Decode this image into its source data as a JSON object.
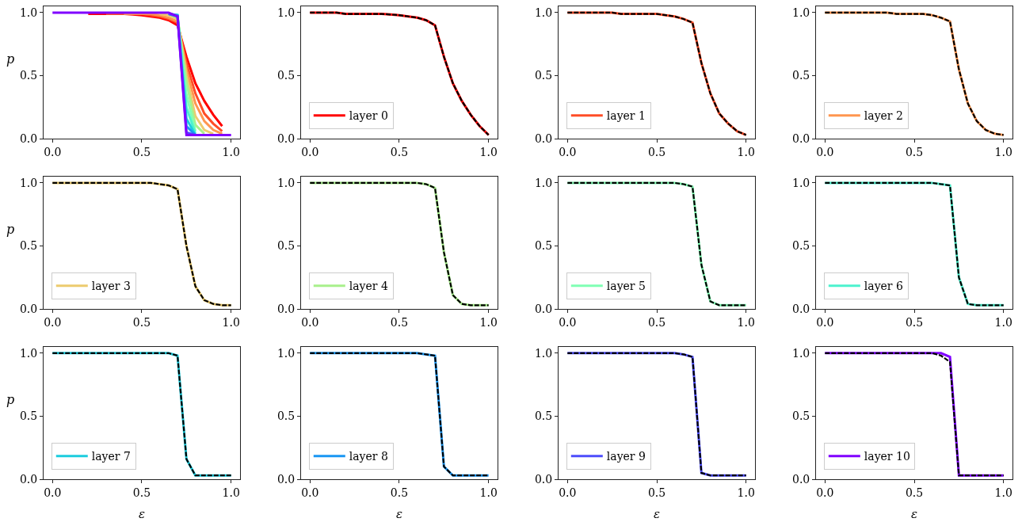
{
  "chart_data": [
    {
      "type": "line",
      "ylabel": "p",
      "x": [
        0,
        0.05,
        0.1,
        0.15,
        0.2,
        0.25,
        0.3,
        0.35,
        0.4,
        0.45,
        0.5,
        0.55,
        0.6,
        0.65,
        0.7,
        0.75,
        0.8,
        0.85,
        0.9,
        0.95,
        1.0
      ],
      "xlim": [
        -0.05,
        1.05
      ],
      "ylim": [
        0,
        1.05
      ],
      "xticks": [
        {
          "value": 0,
          "label": "0.0"
        },
        {
          "value": 0.5,
          "label": "0.5"
        },
        {
          "value": 1,
          "label": "1.0"
        }
      ],
      "yticks": [
        {
          "value": 0,
          "label": "0.0"
        },
        {
          "value": 0.5,
          "label": "0.5"
        },
        {
          "value": 1,
          "label": "1.0"
        }
      ],
      "series": [
        {
          "color": "#ff0000",
          "values": [
            null,
            null,
            null,
            null,
            0.99,
            0.99,
            0.99,
            0.99,
            0.99,
            0.985,
            0.98,
            0.97,
            0.96,
            0.94,
            0.9,
            0.65,
            0.44,
            0.3,
            0.19,
            0.1,
            null
          ]
        },
        {
          "color": "#ff4d27",
          "values": [
            null,
            null,
            null,
            null,
            null,
            null,
            0.99,
            0.99,
            0.99,
            0.99,
            0.99,
            0.98,
            0.97,
            0.95,
            0.92,
            0.6,
            0.36,
            0.2,
            0.12,
            0.06,
            null
          ]
        },
        {
          "color": "#ff964f",
          "values": [
            null,
            null,
            null,
            null,
            null,
            null,
            null,
            null,
            0.99,
            0.99,
            0.99,
            0.99,
            0.98,
            0.96,
            0.93,
            0.55,
            0.28,
            0.14,
            0.07,
            0.04,
            null
          ]
        },
        {
          "color": "#eccb6e",
          "values": [
            null,
            null,
            null,
            null,
            null,
            null,
            null,
            null,
            null,
            null,
            null,
            null,
            0.99,
            0.98,
            0.95,
            0.5,
            0.18,
            0.07,
            0.04,
            null,
            null
          ]
        },
        {
          "color": "#a8f08c",
          "values": [
            null,
            null,
            null,
            null,
            null,
            null,
            null,
            null,
            null,
            null,
            null,
            null,
            null,
            0.99,
            0.96,
            0.45,
            0.11,
            0.04,
            null,
            null,
            null
          ]
        },
        {
          "color": "#80ffb4",
          "values": [
            null,
            null,
            null,
            null,
            null,
            null,
            null,
            null,
            null,
            null,
            null,
            null,
            null,
            0.99,
            0.97,
            0.35,
            0.06,
            null,
            null,
            null,
            null
          ]
        },
        {
          "color": "#4cf2ce",
          "values": [
            null,
            null,
            null,
            null,
            null,
            null,
            null,
            null,
            null,
            null,
            null,
            null,
            null,
            0.99,
            0.98,
            0.25,
            0.04,
            null,
            null,
            null,
            null
          ]
        },
        {
          "color": "#1ccdde",
          "values": [
            null,
            null,
            null,
            null,
            null,
            null,
            null,
            null,
            null,
            null,
            null,
            null,
            null,
            null,
            0.98,
            0.16,
            0.03,
            null,
            null,
            null,
            null
          ]
        },
        {
          "color": "#1996f3",
          "values": [
            null,
            null,
            null,
            null,
            null,
            null,
            null,
            null,
            null,
            null,
            null,
            null,
            null,
            0.99,
            0.98,
            0.1,
            0.03,
            null,
            null,
            null,
            null
          ]
        },
        {
          "color": "#4d4dfc",
          "values": [
            null,
            null,
            null,
            null,
            null,
            null,
            null,
            null,
            null,
            null,
            null,
            null,
            null,
            0.99,
            0.97,
            0.05,
            0.03,
            null,
            null,
            null,
            null
          ]
        },
        {
          "color": "#8000ff",
          "values": [
            1,
            1,
            1,
            1,
            1,
            1,
            1,
            1,
            1,
            1,
            1,
            1,
            1,
            1,
            0.97,
            0.03,
            0.03,
            0.03,
            0.03,
            0.03,
            0.03
          ]
        }
      ]
    },
    {
      "type": "line",
      "legend": "bottom left",
      "x": [
        0,
        0.05,
        0.1,
        0.15,
        0.2,
        0.25,
        0.3,
        0.35,
        0.4,
        0.45,
        0.5,
        0.55,
        0.6,
        0.65,
        0.7,
        0.75,
        0.8,
        0.85,
        0.9,
        0.95,
        1.0
      ],
      "xlim": [
        -0.05,
        1.05
      ],
      "ylim": [
        0,
        1.05
      ],
      "xticks": [
        {
          "value": 0,
          "label": "0.0"
        },
        {
          "value": 0.5,
          "label": "0.5"
        },
        {
          "value": 1,
          "label": "1.0"
        }
      ],
      "yticks": [
        {
          "value": 0,
          "label": "0.0"
        },
        {
          "value": 0.5,
          "label": "0.5"
        },
        {
          "value": 1,
          "label": "1.0"
        }
      ],
      "series": [
        {
          "name": "layer 0",
          "color": "#ff0000",
          "values": [
            1,
            1,
            1,
            1,
            0.99,
            0.99,
            0.99,
            0.99,
            0.99,
            0.985,
            0.98,
            0.97,
            0.96,
            0.94,
            0.9,
            0.65,
            0.44,
            0.3,
            0.19,
            0.1,
            0.03
          ]
        },
        {
          "color": "#000000",
          "line_style": "dashed",
          "values": [
            1,
            1,
            1,
            1,
            0.99,
            0.99,
            0.99,
            0.99,
            0.99,
            0.985,
            0.98,
            0.97,
            0.96,
            0.94,
            0.9,
            0.65,
            0.44,
            0.3,
            0.19,
            0.1,
            0.03
          ]
        }
      ]
    },
    {
      "type": "line",
      "legend": "bottom left",
      "x": [
        0,
        0.05,
        0.1,
        0.15,
        0.2,
        0.25,
        0.3,
        0.35,
        0.4,
        0.45,
        0.5,
        0.55,
        0.6,
        0.65,
        0.7,
        0.75,
        0.8,
        0.85,
        0.9,
        0.95,
        1.0
      ],
      "xlim": [
        -0.05,
        1.05
      ],
      "ylim": [
        0,
        1.05
      ],
      "xticks": [
        {
          "value": 0,
          "label": "0.0"
        },
        {
          "value": 0.5,
          "label": "0.5"
        },
        {
          "value": 1,
          "label": "1.0"
        }
      ],
      "yticks": [
        {
          "value": 0,
          "label": "0.0"
        },
        {
          "value": 0.5,
          "label": "0.5"
        },
        {
          "value": 1,
          "label": "1.0"
        }
      ],
      "series": [
        {
          "name": "layer 1",
          "color": "#ff4d27",
          "values": [
            1,
            1,
            1,
            1,
            1,
            1,
            0.99,
            0.99,
            0.99,
            0.99,
            0.99,
            0.98,
            0.97,
            0.95,
            0.92,
            0.6,
            0.36,
            0.2,
            0.12,
            0.06,
            0.03
          ]
        },
        {
          "color": "#000000",
          "line_style": "dashed",
          "values": [
            1,
            1,
            1,
            1,
            1,
            1,
            0.99,
            0.99,
            0.99,
            0.99,
            0.99,
            0.98,
            0.97,
            0.95,
            0.92,
            0.6,
            0.36,
            0.2,
            0.12,
            0.06,
            0.03
          ]
        }
      ]
    },
    {
      "type": "line",
      "legend": "bottom left",
      "x": [
        0,
        0.05,
        0.1,
        0.15,
        0.2,
        0.25,
        0.3,
        0.35,
        0.4,
        0.45,
        0.5,
        0.55,
        0.6,
        0.65,
        0.7,
        0.75,
        0.8,
        0.85,
        0.9,
        0.95,
        1.0
      ],
      "xlim": [
        -0.05,
        1.05
      ],
      "ylim": [
        0,
        1.05
      ],
      "xticks": [
        {
          "value": 0,
          "label": "0.0"
        },
        {
          "value": 0.5,
          "label": "0.5"
        },
        {
          "value": 1,
          "label": "1.0"
        }
      ],
      "yticks": [
        {
          "value": 0,
          "label": "0.0"
        },
        {
          "value": 0.5,
          "label": "0.5"
        },
        {
          "value": 1,
          "label": "1.0"
        }
      ],
      "series": [
        {
          "name": "layer 2",
          "color": "#ff964f",
          "values": [
            1,
            1,
            1,
            1,
            1,
            1,
            1,
            1,
            0.99,
            0.99,
            0.99,
            0.99,
            0.98,
            0.96,
            0.93,
            0.55,
            0.28,
            0.14,
            0.07,
            0.04,
            0.03
          ]
        },
        {
          "color": "#000000",
          "line_style": "dashed",
          "values": [
            1,
            1,
            1,
            1,
            1,
            1,
            1,
            1,
            0.99,
            0.99,
            0.99,
            0.99,
            0.98,
            0.96,
            0.93,
            0.55,
            0.28,
            0.14,
            0.07,
            0.04,
            0.03
          ]
        }
      ]
    },
    {
      "type": "line",
      "ylabel": "p",
      "legend": "bottom left",
      "x": [
        0,
        0.05,
        0.1,
        0.15,
        0.2,
        0.25,
        0.3,
        0.35,
        0.4,
        0.45,
        0.5,
        0.55,
        0.6,
        0.65,
        0.7,
        0.75,
        0.8,
        0.85,
        0.9,
        0.95,
        1.0
      ],
      "xlim": [
        -0.05,
        1.05
      ],
      "ylim": [
        0,
        1.05
      ],
      "xticks": [
        {
          "value": 0,
          "label": "0.0"
        },
        {
          "value": 0.5,
          "label": "0.5"
        },
        {
          "value": 1,
          "label": "1.0"
        }
      ],
      "yticks": [
        {
          "value": 0,
          "label": "0.0"
        },
        {
          "value": 0.5,
          "label": "0.5"
        },
        {
          "value": 1,
          "label": "1.0"
        }
      ],
      "series": [
        {
          "name": "layer 3",
          "color": "#eccb6e",
          "values": [
            1,
            1,
            1,
            1,
            1,
            1,
            1,
            1,
            1,
            1,
            1,
            1,
            0.99,
            0.98,
            0.95,
            0.5,
            0.18,
            0.07,
            0.04,
            0.03,
            0.03
          ]
        },
        {
          "color": "#000000",
          "line_style": "dashed",
          "values": [
            1,
            1,
            1,
            1,
            1,
            1,
            1,
            1,
            1,
            1,
            1,
            1,
            0.99,
            0.98,
            0.95,
            0.5,
            0.18,
            0.07,
            0.04,
            0.03,
            0.03
          ]
        }
      ]
    },
    {
      "type": "line",
      "legend": "bottom left",
      "x": [
        0,
        0.05,
        0.1,
        0.15,
        0.2,
        0.25,
        0.3,
        0.35,
        0.4,
        0.45,
        0.5,
        0.55,
        0.6,
        0.65,
        0.7,
        0.75,
        0.8,
        0.85,
        0.9,
        0.95,
        1.0
      ],
      "xlim": [
        -0.05,
        1.05
      ],
      "ylim": [
        0,
        1.05
      ],
      "xticks": [
        {
          "value": 0,
          "label": "0.0"
        },
        {
          "value": 0.5,
          "label": "0.5"
        },
        {
          "value": 1,
          "label": "1.0"
        }
      ],
      "yticks": [
        {
          "value": 0,
          "label": "0.0"
        },
        {
          "value": 0.5,
          "label": "0.5"
        },
        {
          "value": 1,
          "label": "1.0"
        }
      ],
      "series": [
        {
          "name": "layer 4",
          "color": "#a8f08c",
          "values": [
            1,
            1,
            1,
            1,
            1,
            1,
            1,
            1,
            1,
            1,
            1,
            1,
            1,
            0.99,
            0.96,
            0.45,
            0.11,
            0.04,
            0.03,
            0.03,
            0.03
          ]
        },
        {
          "color": "#000000",
          "line_style": "dashed",
          "values": [
            1,
            1,
            1,
            1,
            1,
            1,
            1,
            1,
            1,
            1,
            1,
            1,
            1,
            0.99,
            0.96,
            0.45,
            0.11,
            0.04,
            0.03,
            0.03,
            0.03
          ]
        }
      ]
    },
    {
      "type": "line",
      "legend": "bottom left",
      "x": [
        0,
        0.05,
        0.1,
        0.15,
        0.2,
        0.25,
        0.3,
        0.35,
        0.4,
        0.45,
        0.5,
        0.55,
        0.6,
        0.65,
        0.7,
        0.75,
        0.8,
        0.85,
        0.9,
        0.95,
        1.0
      ],
      "xlim": [
        -0.05,
        1.05
      ],
      "ylim": [
        0,
        1.05
      ],
      "xticks": [
        {
          "value": 0,
          "label": "0.0"
        },
        {
          "value": 0.5,
          "label": "0.5"
        },
        {
          "value": 1,
          "label": "1.0"
        }
      ],
      "yticks": [
        {
          "value": 0,
          "label": "0.0"
        },
        {
          "value": 0.5,
          "label": "0.5"
        },
        {
          "value": 1,
          "label": "1.0"
        }
      ],
      "series": [
        {
          "name": "layer 5",
          "color": "#80ffb4",
          "values": [
            1,
            1,
            1,
            1,
            1,
            1,
            1,
            1,
            1,
            1,
            1,
            1,
            1,
            0.99,
            0.97,
            0.35,
            0.06,
            0.03,
            0.03,
            0.03,
            0.03
          ]
        },
        {
          "color": "#000000",
          "line_style": "dashed",
          "values": [
            1,
            1,
            1,
            1,
            1,
            1,
            1,
            1,
            1,
            1,
            1,
            1,
            1,
            0.99,
            0.97,
            0.35,
            0.06,
            0.03,
            0.03,
            0.03,
            0.03
          ]
        }
      ]
    },
    {
      "type": "line",
      "legend": "bottom left",
      "x": [
        0,
        0.05,
        0.1,
        0.15,
        0.2,
        0.25,
        0.3,
        0.35,
        0.4,
        0.45,
        0.5,
        0.55,
        0.6,
        0.65,
        0.7,
        0.75,
        0.8,
        0.85,
        0.9,
        0.95,
        1.0
      ],
      "xlim": [
        -0.05,
        1.05
      ],
      "ylim": [
        0,
        1.05
      ],
      "xticks": [
        {
          "value": 0,
          "label": "0.0"
        },
        {
          "value": 0.5,
          "label": "0.5"
        },
        {
          "value": 1,
          "label": "1.0"
        }
      ],
      "yticks": [
        {
          "value": 0,
          "label": "0.0"
        },
        {
          "value": 0.5,
          "label": "0.5"
        },
        {
          "value": 1,
          "label": "1.0"
        }
      ],
      "series": [
        {
          "name": "layer 6",
          "color": "#4cf2ce",
          "values": [
            1,
            1,
            1,
            1,
            1,
            1,
            1,
            1,
            1,
            1,
            1,
            1,
            1,
            0.99,
            0.98,
            0.25,
            0.04,
            0.03,
            0.03,
            0.03,
            0.03
          ]
        },
        {
          "color": "#000000",
          "line_style": "dashed",
          "values": [
            1,
            1,
            1,
            1,
            1,
            1,
            1,
            1,
            1,
            1,
            1,
            1,
            1,
            0.99,
            0.98,
            0.25,
            0.04,
            0.03,
            0.03,
            0.03,
            0.03
          ]
        }
      ]
    },
    {
      "type": "line",
      "ylabel": "p",
      "xlabel": "ε",
      "legend": "bottom left",
      "x": [
        0,
        0.05,
        0.1,
        0.15,
        0.2,
        0.25,
        0.3,
        0.35,
        0.4,
        0.45,
        0.5,
        0.55,
        0.6,
        0.65,
        0.7,
        0.75,
        0.8,
        0.85,
        0.9,
        0.95,
        1.0
      ],
      "xlim": [
        -0.05,
        1.05
      ],
      "ylim": [
        0,
        1.05
      ],
      "xticks": [
        {
          "value": 0,
          "label": "0.0"
        },
        {
          "value": 0.5,
          "label": "0.5"
        },
        {
          "value": 1,
          "label": "1.0"
        }
      ],
      "yticks": [
        {
          "value": 0,
          "label": "0.0"
        },
        {
          "value": 0.5,
          "label": "0.5"
        },
        {
          "value": 1,
          "label": "1.0"
        }
      ],
      "series": [
        {
          "name": "layer 7",
          "color": "#1ccdde",
          "values": [
            1,
            1,
            1,
            1,
            1,
            1,
            1,
            1,
            1,
            1,
            1,
            1,
            1,
            1,
            0.98,
            0.16,
            0.03,
            0.03,
            0.03,
            0.03,
            0.03
          ]
        },
        {
          "color": "#000000",
          "line_style": "dashed",
          "values": [
            1,
            1,
            1,
            1,
            1,
            1,
            1,
            1,
            1,
            1,
            1,
            1,
            1,
            1,
            0.98,
            0.16,
            0.03,
            0.03,
            0.03,
            0.03,
            0.03
          ]
        }
      ]
    },
    {
      "type": "line",
      "xlabel": "ε",
      "legend": "bottom left",
      "x": [
        0,
        0.05,
        0.1,
        0.15,
        0.2,
        0.25,
        0.3,
        0.35,
        0.4,
        0.45,
        0.5,
        0.55,
        0.6,
        0.65,
        0.7,
        0.75,
        0.8,
        0.85,
        0.9,
        0.95,
        1.0
      ],
      "xlim": [
        -0.05,
        1.05
      ],
      "ylim": [
        0,
        1.05
      ],
      "xticks": [
        {
          "value": 0,
          "label": "0.0"
        },
        {
          "value": 0.5,
          "label": "0.5"
        },
        {
          "value": 1,
          "label": "1.0"
        }
      ],
      "yticks": [
        {
          "value": 0,
          "label": "0.0"
        },
        {
          "value": 0.5,
          "label": "0.5"
        },
        {
          "value": 1,
          "label": "1.0"
        }
      ],
      "series": [
        {
          "name": "layer 8",
          "color": "#1996f3",
          "values": [
            1,
            1,
            1,
            1,
            1,
            1,
            1,
            1,
            1,
            1,
            1,
            1,
            1,
            0.99,
            0.98,
            0.1,
            0.03,
            0.03,
            0.03,
            0.03,
            0.03
          ]
        },
        {
          "color": "#000000",
          "line_style": "dashed",
          "values": [
            1,
            1,
            1,
            1,
            1,
            1,
            1,
            1,
            1,
            1,
            1,
            1,
            1,
            0.99,
            0.98,
            0.1,
            0.03,
            0.03,
            0.03,
            0.03,
            0.03
          ]
        }
      ]
    },
    {
      "type": "line",
      "xlabel": "ε",
      "legend": "bottom left",
      "x": [
        0,
        0.05,
        0.1,
        0.15,
        0.2,
        0.25,
        0.3,
        0.35,
        0.4,
        0.45,
        0.5,
        0.55,
        0.6,
        0.65,
        0.7,
        0.75,
        0.8,
        0.85,
        0.9,
        0.95,
        1.0
      ],
      "xlim": [
        -0.05,
        1.05
      ],
      "ylim": [
        0,
        1.05
      ],
      "xticks": [
        {
          "value": 0,
          "label": "0.0"
        },
        {
          "value": 0.5,
          "label": "0.5"
        },
        {
          "value": 1,
          "label": "1.0"
        }
      ],
      "yticks": [
        {
          "value": 0,
          "label": "0.0"
        },
        {
          "value": 0.5,
          "label": "0.5"
        },
        {
          "value": 1,
          "label": "1.0"
        }
      ],
      "series": [
        {
          "name": "layer 9",
          "color": "#4d4dfc",
          "values": [
            1,
            1,
            1,
            1,
            1,
            1,
            1,
            1,
            1,
            1,
            1,
            1,
            1,
            0.99,
            0.97,
            0.05,
            0.03,
            0.03,
            0.03,
            0.03,
            0.03
          ]
        },
        {
          "color": "#000000",
          "line_style": "dashed",
          "values": [
            1,
            1,
            1,
            1,
            1,
            1,
            1,
            1,
            1,
            1,
            1,
            1,
            1,
            0.99,
            0.97,
            0.05,
            0.03,
            0.03,
            0.03,
            0.03,
            0.03
          ]
        }
      ]
    },
    {
      "type": "line",
      "xlabel": "ε",
      "legend": "bottom left",
      "x": [
        0,
        0.05,
        0.1,
        0.15,
        0.2,
        0.25,
        0.3,
        0.35,
        0.4,
        0.45,
        0.5,
        0.55,
        0.6,
        0.65,
        0.7,
        0.75,
        0.8,
        0.85,
        0.9,
        0.95,
        1.0
      ],
      "xlim": [
        -0.05,
        1.05
      ],
      "ylim": [
        0,
        1.05
      ],
      "xticks": [
        {
          "value": 0,
          "label": "0.0"
        },
        {
          "value": 0.5,
          "label": "0.5"
        },
        {
          "value": 1,
          "label": "1.0"
        }
      ],
      "yticks": [
        {
          "value": 0,
          "label": "0.0"
        },
        {
          "value": 0.5,
          "label": "0.5"
        },
        {
          "value": 1,
          "label": "1.0"
        }
      ],
      "series": [
        {
          "name": "layer 10",
          "color": "#8000ff",
          "values": [
            1,
            1,
            1,
            1,
            1,
            1,
            1,
            1,
            1,
            1,
            1,
            1,
            1,
            1,
            0.97,
            0.03,
            0.03,
            0.03,
            0.03,
            0.03,
            0.03
          ]
        },
        {
          "color": "#000000",
          "line_style": "dashed",
          "values": [
            1,
            1,
            1,
            1,
            1,
            1,
            1,
            1,
            1,
            1,
            1,
            1,
            1,
            0.98,
            0.93,
            0.03,
            0.03,
            0.03,
            0.03,
            0.03,
            0.03
          ]
        }
      ]
    }
  ]
}
